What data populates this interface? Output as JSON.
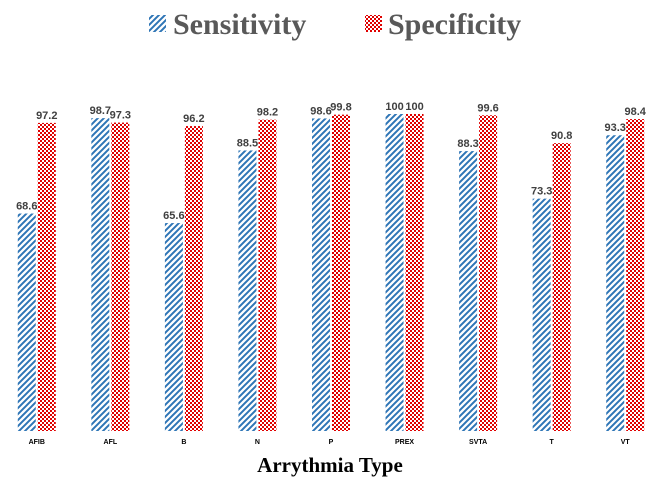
{
  "chart_data": {
    "type": "bar",
    "title": "",
    "xlabel": "Arrythmia Type",
    "ylabel": "",
    "ylim": [
      0,
      100
    ],
    "grid": false,
    "legend_position": "top",
    "categories": [
      "AFIB",
      "AFL",
      "B",
      "N",
      "P",
      "PREX",
      "SVTA",
      "T",
      "VT"
    ],
    "series": [
      {
        "name": "Sensitivity",
        "values": [
          68.6,
          98.7,
          65.6,
          88.5,
          98.6,
          100,
          88.3,
          73.3,
          93.3
        ],
        "color": "#2E75B6",
        "pattern": "diagonal-stripes"
      },
      {
        "name": "Specificity",
        "values": [
          97.2,
          97.3,
          96.2,
          98.2,
          99.8,
          100,
          99.6,
          90.8,
          98.4
        ],
        "color": "#E00000",
        "pattern": "checkerboard"
      }
    ]
  }
}
